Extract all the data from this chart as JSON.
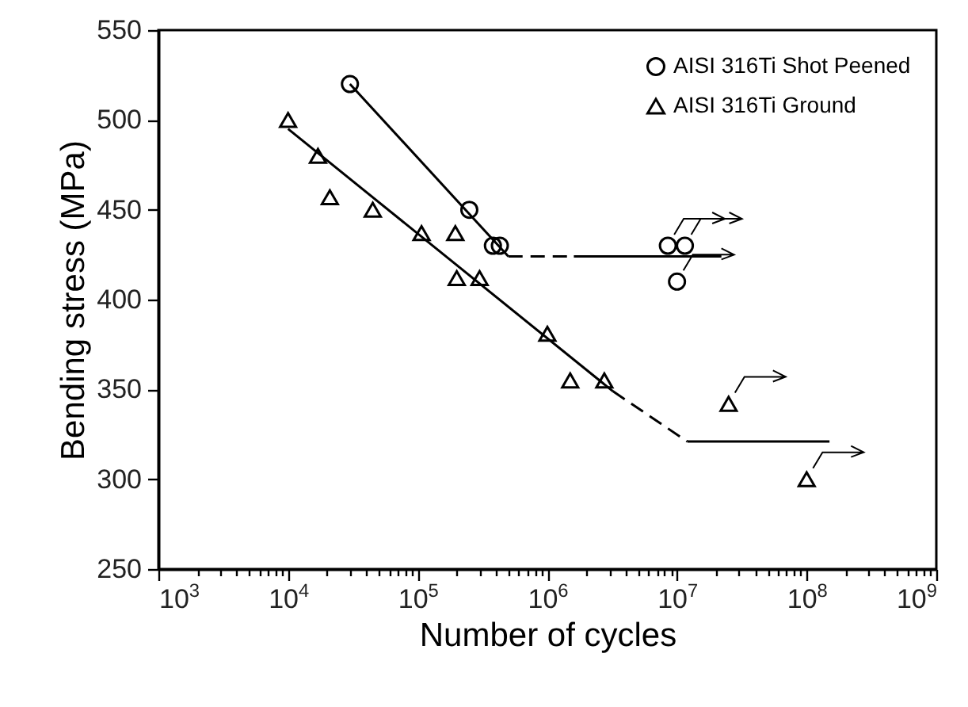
{
  "chart_data": {
    "type": "scatter",
    "xlabel": "Number of cycles",
    "ylabel": "Bending stress (MPa)",
    "log": "x",
    "legend": "top right",
    "grid": false,
    "xlim": [
      1000,
      1000000000
    ],
    "ylim": [
      250,
      550
    ],
    "xticks": [
      {
        "value": 1000,
        "label": "10$^{3}$"
      },
      {
        "value": 2000,
        "label": null
      },
      {
        "value": 3000,
        "label": null
      },
      {
        "value": 4000,
        "label": null
      },
      {
        "value": 5000,
        "label": null
      },
      {
        "value": 6000,
        "label": null
      },
      {
        "value": 7000,
        "label": null
      },
      {
        "value": 8000,
        "label": null
      },
      {
        "value": 9000,
        "label": null
      },
      {
        "value": 10000,
        "label": "10$^{4}$"
      },
      {
        "value": 20000,
        "label": null
      },
      {
        "value": 30000,
        "label": null
      },
      {
        "value": 40000,
        "label": null
      },
      {
        "value": 50000,
        "label": null
      },
      {
        "value": 60000,
        "label": null
      },
      {
        "value": 70000,
        "label": null
      },
      {
        "value": 80000,
        "label": null
      },
      {
        "value": 90000,
        "label": null
      },
      {
        "value": 100000,
        "label": "10$^{5}$"
      },
      {
        "value": 200000,
        "label": null
      },
      {
        "value": 300000,
        "label": null
      },
      {
        "value": 400000,
        "label": null
      },
      {
        "value": 500000,
        "label": null
      },
      {
        "value": 600000,
        "label": null
      },
      {
        "value": 700000,
        "label": null
      },
      {
        "value": 800000,
        "label": null
      },
      {
        "value": 900000,
        "label": null
      },
      {
        "value": 1000000,
        "label": "10$^{6}$"
      },
      {
        "value": 2000000,
        "label": null
      },
      {
        "value": 3000000,
        "label": null
      },
      {
        "value": 4000000,
        "label": null
      },
      {
        "value": 5000000,
        "label": null
      },
      {
        "value": 6000000,
        "label": null
      },
      {
        "value": 7000000,
        "label": null
      },
      {
        "value": 8000000,
        "label": null
      },
      {
        "value": 9000000,
        "label": null
      },
      {
        "value": 10000000,
        "label": "10$^{7}$"
      },
      {
        "value": 20000000,
        "label": null
      },
      {
        "value": 30000000,
        "label": null
      },
      {
        "value": 40000000,
        "label": null
      },
      {
        "value": 50000000,
        "label": null
      },
      {
        "value": 60000000,
        "label": null
      },
      {
        "value": 70000000,
        "label": null
      },
      {
        "value": 80000000,
        "label": null
      },
      {
        "value": 90000000,
        "label": null
      },
      {
        "value": 100000000,
        "label": "10$^{8}$"
      },
      {
        "value": 200000000,
        "label": null
      },
      {
        "value": 300000000,
        "label": null
      },
      {
        "value": 400000000,
        "label": null
      },
      {
        "value": 500000000,
        "label": null
      },
      {
        "value": 600000000,
        "label": null
      },
      {
        "value": 700000000,
        "label": null
      },
      {
        "value": 800000000,
        "label": null
      },
      {
        "value": 900000000,
        "label": null
      },
      {
        "value": 1000000000,
        "label": "10$^{9}$"
      }
    ],
    "yticks": [
      250,
      300,
      350,
      400,
      450,
      500,
      550
    ],
    "series": [
      {
        "name": "AISI 316Ti Shot Peened",
        "marker": "circle",
        "color": "#000000",
        "x": [
          30000,
          250000,
          380000,
          430000,
          8500000,
          11500000,
          10000000
        ],
        "values": [
          520,
          450,
          430,
          430,
          430,
          430,
          410
        ]
      },
      {
        "name": "AISI 316Ti Ground",
        "marker": "triangle",
        "color": "#000000",
        "x": [
          10000,
          17000,
          21000,
          45000,
          107000,
          195000,
          200000,
          300000,
          1000000,
          1500000,
          2750000,
          25000000,
          100000000
        ],
        "values": [
          500,
          480,
          457,
          450,
          437,
          437,
          412,
          412,
          381,
          355,
          355,
          342,
          300
        ]
      },
      {
        "type": "line",
        "line_style": "solid",
        "color": "#000000",
        "x": [
          30000,
          500000
        ],
        "values": [
          520,
          424
        ]
      },
      {
        "type": "line",
        "line_style": "dashed",
        "color": "#000000",
        "x": [
          500000,
          1600000
        ],
        "values": [
          424,
          424
        ]
      },
      {
        "type": "line",
        "line_style": "solid",
        "color": "#000000",
        "x": [
          1600000,
          22000000
        ],
        "values": [
          424,
          424
        ]
      },
      {
        "type": "line",
        "line_style": "solid",
        "color": "#000000",
        "x": [
          10000,
          3200000
        ],
        "values": [
          495,
          349
        ]
      },
      {
        "type": "line",
        "line_style": "dashed",
        "color": "#000000",
        "x": [
          3200000,
          12000000
        ],
        "values": [
          349,
          321
        ]
      },
      {
        "type": "line",
        "line_style": "solid",
        "color": "#000000",
        "x": [
          12000000,
          150000000
        ],
        "values": [
          321,
          321
        ]
      }
    ]
  }
}
